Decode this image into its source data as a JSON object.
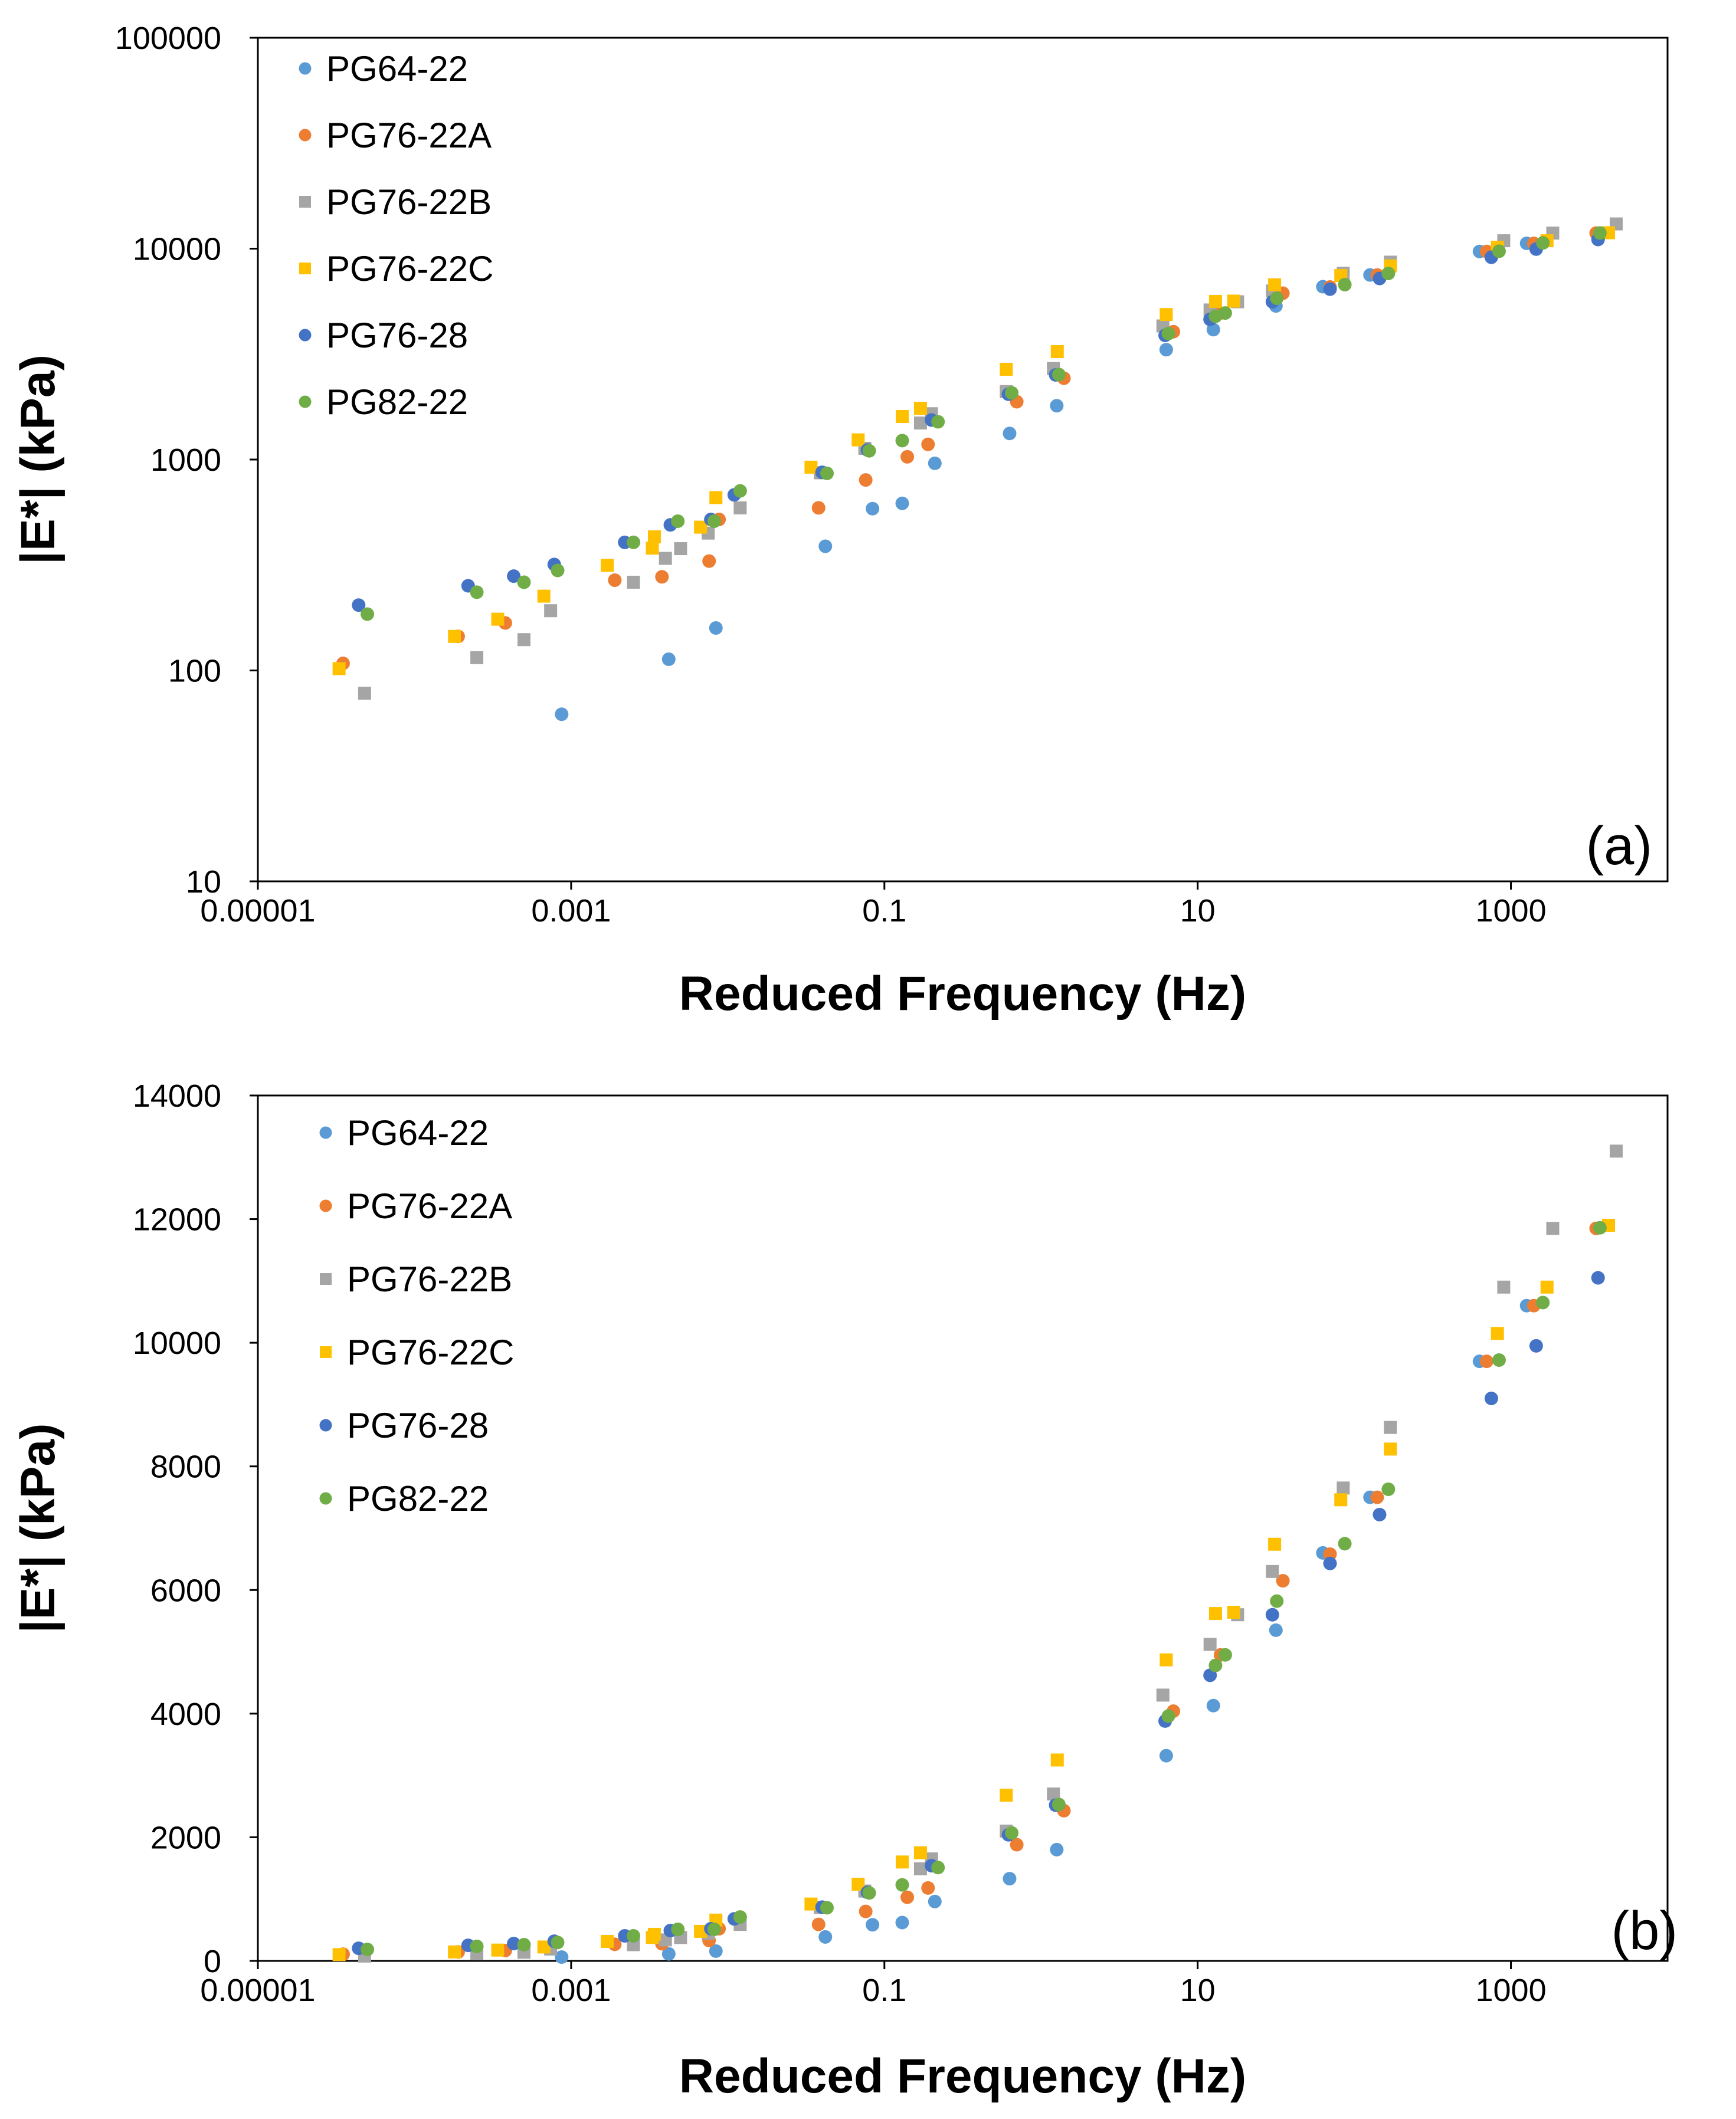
{
  "figure": {
    "colors": {
      "PG64-22": "#5B9BD5",
      "PG76-22A": "#ED7D31",
      "PG76-22B": "#A5A5A5",
      "PG76-22C": "#FFC000",
      "PG76-28": "#4472C4",
      "PG82-22": "#70AD47"
    }
  },
  "chart_data": [
    {
      "id": "a",
      "type": "scatter",
      "xscale": "log",
      "yscale": "log",
      "panel_label": "(a)",
      "xlabel": "Reduced Frequency (Hz)",
      "ylabel": "|E*| (kPa)",
      "xlim": [
        1e-05,
        10000
      ],
      "ylim": [
        10,
        100000
      ],
      "xticks": [
        1e-05,
        0.001,
        0.1,
        10,
        1000
      ],
      "xtick_labels": [
        "0.00001",
        "0.001",
        "0.1",
        "10",
        "1000"
      ],
      "yticks": [
        10,
        100,
        1000,
        10000,
        100000
      ],
      "ytick_labels": [
        "10",
        "100",
        "1000",
        "10000",
        "100000"
      ],
      "legend_position": "top-left",
      "series": [
        {
          "name": "PG64-22",
          "marker": "circle",
          "points": [
            [
              0.00087,
              62
            ],
            [
              0.0042,
              113
            ],
            [
              0.0084,
              159
            ],
            [
              0.042,
              388
            ],
            [
              0.084,
              585
            ],
            [
              0.13,
              620
            ],
            [
              0.21,
              960
            ],
            [
              0.63,
              1330
            ],
            [
              1.26,
              1800
            ],
            [
              6.3,
              3320
            ],
            [
              12.6,
              4130
            ],
            [
              31.6,
              5350
            ],
            [
              63,
              6600
            ],
            [
              126,
              7500
            ],
            [
              630,
              9700
            ],
            [
              1260,
              10600
            ]
          ]
        },
        {
          "name": "PG76-22A",
          "marker": "circle",
          "points": [
            [
              3.5e-05,
              108
            ],
            [
              0.00019,
              145
            ],
            [
              0.00038,
              168
            ],
            [
              0.0019,
              268
            ],
            [
              0.0038,
              278
            ],
            [
              0.0076,
              330
            ],
            [
              0.0088,
              520
            ],
            [
              0.038,
              590
            ],
            [
              0.076,
              800
            ],
            [
              0.14,
              1030
            ],
            [
              0.19,
              1180
            ],
            [
              0.7,
              1880
            ],
            [
              1.4,
              2430
            ],
            [
              7.0,
              4040
            ],
            [
              14,
              4950
            ],
            [
              35,
              6150
            ],
            [
              70,
              6580
            ],
            [
              140,
              7500
            ],
            [
              700,
              9700
            ],
            [
              1400,
              10600
            ],
            [
              3500,
              11850
            ]
          ]
        },
        {
          "name": "PG76-22B",
          "marker": "square",
          "points": [
            [
              4.8e-05,
              78
            ],
            [
              0.00025,
              115
            ],
            [
              0.0005,
              140
            ],
            [
              0.00074,
              192
            ],
            [
              0.0025,
              262
            ],
            [
              0.004,
              340
            ],
            [
              0.005,
              378
            ],
            [
              0.0075,
              448
            ],
            [
              0.012,
              590
            ],
            [
              0.039,
              865
            ],
            [
              0.075,
              1130
            ],
            [
              0.17,
              1490
            ],
            [
              0.2,
              1650
            ],
            [
              0.6,
              2100
            ],
            [
              1.2,
              2700
            ],
            [
              6,
              4300
            ],
            [
              12,
              5120
            ],
            [
              18,
              5600
            ],
            [
              30,
              6300
            ],
            [
              85,
              7650
            ],
            [
              170,
              8630
            ],
            [
              900,
              10900
            ],
            [
              1850,
              11850
            ],
            [
              4700,
              13100
            ]
          ]
        },
        {
          "name": "PG76-22C",
          "marker": "square",
          "points": [
            [
              3.3e-05,
              102
            ],
            [
              0.00018,
              145
            ],
            [
              0.00034,
              175
            ],
            [
              0.00067,
              225
            ],
            [
              0.0017,
              315
            ],
            [
              0.0033,
              380
            ],
            [
              0.0034,
              430
            ],
            [
              0.0067,
              478
            ],
            [
              0.0084,
              660
            ],
            [
              0.034,
              920
            ],
            [
              0.068,
              1240
            ],
            [
              0.13,
              1600
            ],
            [
              0.17,
              1750
            ],
            [
              0.6,
              2680
            ],
            [
              1.27,
              3250
            ],
            [
              6.3,
              4870
            ],
            [
              13,
              5620
            ],
            [
              17,
              5640
            ],
            [
              31,
              6740
            ],
            [
              82,
              7460
            ],
            [
              170,
              8280
            ],
            [
              820,
              10150
            ],
            [
              1700,
              10900
            ],
            [
              4200,
              11900
            ]
          ]
        },
        {
          "name": "PG76-28",
          "marker": "circle",
          "points": [
            [
              4.4e-05,
              204
            ],
            [
              0.00022,
              252
            ],
            [
              0.00043,
              280
            ],
            [
              0.00078,
              318
            ],
            [
              0.0022,
              405
            ],
            [
              0.0043,
              490
            ],
            [
              0.0078,
              520
            ],
            [
              0.011,
              680
            ],
            [
              0.04,
              870
            ],
            [
              0.078,
              1110
            ],
            [
              0.2,
              1540
            ],
            [
              0.62,
              2040
            ],
            [
              1.24,
              2520
            ],
            [
              6.2,
              3880
            ],
            [
              12,
              4620
            ],
            [
              30,
              5600
            ],
            [
              70,
              6430
            ],
            [
              145,
              7220
            ],
            [
              750,
              9100
            ],
            [
              1450,
              9950
            ],
            [
              3600,
              11050
            ]
          ]
        },
        {
          "name": "PG82-22",
          "marker": "circle",
          "points": [
            [
              5e-05,
              185
            ],
            [
              0.00025,
              235
            ],
            [
              0.0005,
              262
            ],
            [
              0.00082,
              298
            ],
            [
              0.0025,
              405
            ],
            [
              0.0048,
              510
            ],
            [
              0.0082,
              510
            ],
            [
              0.012,
              710
            ],
            [
              0.043,
              860
            ],
            [
              0.08,
              1100
            ],
            [
              0.13,
              1230
            ],
            [
              0.22,
              1510
            ],
            [
              0.65,
              2070
            ],
            [
              1.3,
              2530
            ],
            [
              6.5,
              3960
            ],
            [
              13,
              4780
            ],
            [
              15,
              4950
            ],
            [
              32,
              5820
            ],
            [
              87,
              6750
            ],
            [
              165,
              7630
            ],
            [
              840,
              9720
            ],
            [
              1600,
              10650
            ],
            [
              3700,
              11860
            ]
          ]
        }
      ]
    },
    {
      "id": "b",
      "type": "scatter",
      "xscale": "log",
      "yscale": "linear",
      "panel_label": "(b)",
      "xlabel": "Reduced Frequency (Hz)",
      "ylabel": "|E*| (kPa)",
      "xlim": [
        1e-05,
        10000
      ],
      "ylim": [
        0,
        14000
      ],
      "xticks": [
        1e-05,
        0.001,
        0.1,
        10,
        1000
      ],
      "xtick_labels": [
        "0.00001",
        "0.001",
        "0.1",
        "10",
        "1000"
      ],
      "yticks": [
        0,
        2000,
        4000,
        6000,
        8000,
        10000,
        12000,
        14000
      ],
      "ytick_labels": [
        "0",
        "2000",
        "4000",
        "6000",
        "8000",
        "10000",
        "12000",
        "14000"
      ],
      "legend_position": "top-left",
      "series_ref": "a"
    }
  ]
}
